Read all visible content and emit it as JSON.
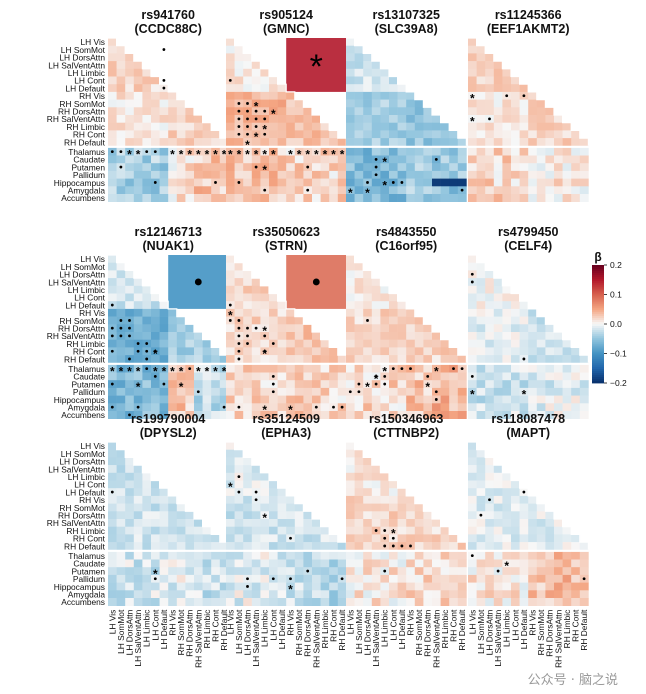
{
  "figure": {
    "watermark": "公众号 · 脑之说",
    "row_labels": [
      "LH Vis",
      "LH SomMot",
      "LH DorsAttn",
      "LH SalVentAttn",
      "LH Limbic",
      "LH Cont",
      "LH Default",
      "RH Vis",
      "RH SomMot",
      "RH DorsAttn",
      "RH SalVentAttn",
      "RH Limbic",
      "RH Cont",
      "RH Default",
      "Thalamus",
      "Caudate",
      "Putamen",
      "Pallidum",
      "Hippocampus",
      "Amygdala",
      "Accumbens"
    ],
    "col_labels": [
      "LH Vis",
      "LH SomMot",
      "LH DorsAttn",
      "LH SalVentAttn",
      "LH Limbic",
      "LH Cont",
      "LH Default",
      "RH Vis",
      "RH SomMot",
      "RH DorsAttn",
      "RH SalVentAttn",
      "RH Limbic",
      "RH Cont",
      "RH Default"
    ],
    "colorbar": {
      "title": "β",
      "ticks": [
        "0.2",
        "0.1",
        "0.0",
        "−0.1",
        "−0.2"
      ],
      "range": [
        -0.2,
        0.2
      ],
      "colors": [
        "#08306b",
        "#2166ac",
        "#4393c3",
        "#92c5de",
        "#f7f7f7",
        "#f4a582",
        "#d6604d",
        "#b2182b",
        "#67001f"
      ]
    }
  },
  "chart_data": [
    {
      "type": "heatmap",
      "snp": "rs941760",
      "gene": "(CCDC88C)",
      "bg": [
        0.02,
        0.01,
        0.02
      ],
      "strip": [
        -0.04,
        0.01,
        0.03
      ],
      "dots": [
        [
          1,
          6
        ],
        [
          18,
          5
        ],
        [
          18,
          12
        ],
        [
          16,
          1
        ],
        [
          5,
          6
        ],
        [
          6,
          6
        ]
      ],
      "stars": [
        [
          14,
          2
        ],
        [
          14,
          3
        ],
        [
          14,
          7
        ],
        [
          14,
          8
        ],
        [
          14,
          9
        ],
        [
          14,
          10
        ],
        [
          14,
          11
        ],
        [
          14,
          12
        ],
        [
          14,
          13
        ]
      ],
      "dots_thal": [
        [
          14,
          0
        ],
        [
          14,
          1
        ],
        [
          14,
          4
        ],
        [
          14,
          5
        ]
      ],
      "big": null
    },
    {
      "type": "heatmap",
      "snp": "rs905124",
      "gene": "(GMNC)",
      "bg": [
        0.01,
        0.04,
        0.03
      ],
      "strip": [
        0.03,
        0.02,
        0.02
      ],
      "dots": [
        [
          5,
          0
        ],
        [
          8,
          1
        ],
        [
          8,
          2
        ],
        [
          9,
          1
        ],
        [
          9,
          2
        ],
        [
          9,
          3
        ],
        [
          9,
          4
        ],
        [
          10,
          1
        ],
        [
          10,
          2
        ],
        [
          10,
          3
        ],
        [
          10,
          4
        ],
        [
          11,
          1
        ],
        [
          11,
          2
        ],
        [
          11,
          3
        ],
        [
          12,
          1
        ],
        [
          12,
          2
        ],
        [
          12,
          4
        ],
        [
          16,
          3
        ],
        [
          19,
          4
        ],
        [
          18,
          1
        ],
        [
          19,
          9
        ],
        [
          16,
          9
        ]
      ],
      "stars": [
        [
          8,
          3
        ],
        [
          9,
          5
        ],
        [
          11,
          4
        ],
        [
          12,
          3
        ],
        [
          13,
          2
        ],
        [
          14,
          0
        ],
        [
          14,
          1
        ],
        [
          14,
          2
        ],
        [
          14,
          3
        ],
        [
          14,
          4
        ],
        [
          14,
          5
        ],
        [
          14,
          7
        ],
        [
          14,
          8
        ],
        [
          14,
          9
        ],
        [
          14,
          10
        ],
        [
          14,
          11
        ],
        [
          14,
          12
        ],
        [
          14,
          13
        ],
        [
          16,
          4
        ]
      ],
      "dots_thal": [],
      "big": {
        "kind": "star",
        "value": 0.15
      }
    },
    {
      "type": "heatmap",
      "snp": "rs13107325",
      "gene": "(SLC39A8)",
      "bg": [
        -0.02,
        -0.04,
        -0.05
      ],
      "strip": [
        -0.06,
        -0.04,
        -0.05
      ],
      "dots": [
        [
          15,
          3
        ],
        [
          15,
          10
        ],
        [
          16,
          3
        ],
        [
          17,
          3
        ],
        [
          18,
          2
        ],
        [
          18,
          5
        ],
        [
          18,
          6
        ],
        [
          19,
          13
        ]
      ],
      "stars": [
        [
          15,
          4
        ],
        [
          18,
          4
        ],
        [
          19,
          0
        ],
        [
          19,
          2
        ]
      ],
      "dots_thal": [],
      "strong": [
        [
          18,
          10
        ],
        [
          18,
          11
        ],
        [
          18,
          12
        ],
        [
          18,
          13
        ]
      ],
      "big": null
    },
    {
      "type": "heatmap",
      "snp": "rs11245366",
      "gene": "(EEF1AKMT2)",
      "bg": [
        0.02,
        0.01,
        0.02
      ],
      "strip": [
        0.02,
        0.01,
        0.01
      ],
      "dots": [
        [
          7,
          4
        ],
        [
          7,
          6
        ],
        [
          10,
          2
        ]
      ],
      "stars": [
        [
          7,
          0
        ],
        [
          10,
          0
        ]
      ],
      "dots_thal": [],
      "big": null
    },
    {
      "type": "heatmap",
      "snp": "rs12146713",
      "gene": "(NUAK1)",
      "bg": [
        -0.02,
        -0.07,
        -0.04
      ],
      "strip": [
        -0.06,
        0.03,
        -0.03
      ],
      "dots": [
        [
          6,
          0
        ],
        [
          8,
          1
        ],
        [
          8,
          2
        ],
        [
          9,
          0
        ],
        [
          9,
          1
        ],
        [
          9,
          2
        ],
        [
          10,
          0
        ],
        [
          10,
          1
        ],
        [
          10,
          2
        ],
        [
          11,
          3
        ],
        [
          11,
          4
        ],
        [
          12,
          0
        ],
        [
          12,
          3
        ],
        [
          12,
          4
        ],
        [
          12,
          5
        ],
        [
          13,
          2
        ],
        [
          13,
          4
        ],
        [
          15,
          5
        ],
        [
          16,
          0
        ],
        [
          16,
          6
        ],
        [
          17,
          10
        ],
        [
          19,
          0
        ],
        [
          19,
          3
        ],
        [
          19,
          13
        ],
        [
          20,
          2
        ]
      ],
      "stars": [
        [
          12,
          5
        ],
        [
          14,
          0
        ],
        [
          14,
          1
        ],
        [
          14,
          2
        ],
        [
          14,
          3
        ],
        [
          14,
          5
        ],
        [
          14,
          6
        ],
        [
          14,
          7
        ],
        [
          14,
          8
        ],
        [
          14,
          10
        ],
        [
          14,
          11
        ],
        [
          14,
          12
        ],
        [
          14,
          13
        ],
        [
          16,
          3
        ],
        [
          16,
          8
        ]
      ],
      "dots_thal": [
        [
          14,
          4
        ],
        [
          14,
          9
        ]
      ],
      "big": {
        "kind": "dot",
        "value": -0.1
      }
    },
    {
      "type": "heatmap",
      "snp": "rs35050623",
      "gene": "(STRN)",
      "bg": [
        0.02,
        0.02,
        0.03
      ],
      "strip": [
        0.02,
        0.03,
        0.02
      ],
      "dots": [
        [
          6,
          0
        ],
        [
          8,
          0
        ],
        [
          8,
          1
        ],
        [
          9,
          1
        ],
        [
          9,
          2
        ],
        [
          9,
          3
        ],
        [
          10,
          1
        ],
        [
          10,
          2
        ],
        [
          10,
          4
        ],
        [
          11,
          1
        ],
        [
          11,
          2
        ],
        [
          11,
          5
        ],
        [
          12,
          1
        ],
        [
          12,
          4
        ],
        [
          13,
          1
        ],
        [
          15,
          5
        ],
        [
          16,
          5
        ],
        [
          17,
          5
        ],
        [
          19,
          1
        ],
        [
          19,
          10
        ],
        [
          19,
          12
        ],
        [
          19,
          13
        ]
      ],
      "stars": [
        [
          7,
          0
        ],
        [
          9,
          4
        ],
        [
          12,
          4
        ],
        [
          19,
          4
        ],
        [
          19,
          7
        ]
      ],
      "dots_thal": [],
      "big": {
        "kind": "dot",
        "value": 0.09
      }
    },
    {
      "type": "heatmap",
      "snp": "rs4843550",
      "gene": "(C16orf95)",
      "bg": [
        0.01,
        0.02,
        0.02
      ],
      "strip": [
        0.02,
        0.03,
        0.04
      ],
      "dots": [
        [
          8,
          2
        ],
        [
          14,
          5
        ],
        [
          14,
          6
        ],
        [
          14,
          7
        ],
        [
          14,
          12
        ],
        [
          14,
          13
        ],
        [
          15,
          3
        ],
        [
          15,
          4
        ],
        [
          15,
          9
        ],
        [
          16,
          1
        ],
        [
          16,
          3
        ],
        [
          16,
          4
        ],
        [
          17,
          0
        ],
        [
          17,
          1
        ],
        [
          17,
          10
        ],
        [
          18,
          10
        ]
      ],
      "stars": [
        [
          14,
          4
        ],
        [
          14,
          10
        ],
        [
          15,
          3
        ],
        [
          16,
          2
        ],
        [
          16,
          9
        ]
      ],
      "dots_thal": [],
      "big": null
    },
    {
      "type": "heatmap",
      "snp": "rs4799450",
      "gene": "(CELF4)",
      "bg": [
        0.0,
        -0.01,
        -0.02
      ],
      "strip": [
        -0.02,
        -0.01,
        -0.01
      ],
      "dots": [
        [
          2,
          0
        ],
        [
          3,
          0
        ],
        [
          13,
          6
        ],
        [
          15,
          0
        ]
      ],
      "stars": [
        [
          17,
          0
        ],
        [
          17,
          6
        ]
      ],
      "dots_thal": [],
      "big": null
    },
    {
      "type": "heatmap",
      "snp": "rs199790004",
      "gene": "(DPYSL2)",
      "bg": [
        -0.02,
        -0.02,
        -0.02
      ],
      "strip": [
        -0.02,
        -0.01,
        -0.02
      ],
      "dots": [
        [
          6,
          0
        ],
        [
          17,
          5
        ]
      ],
      "stars": [
        [
          16,
          5
        ]
      ],
      "dots_thal": [],
      "big": null
    },
    {
      "type": "heatmap",
      "snp": "rs35124509",
      "gene": "(EPHA3)",
      "bg": [
        -0.01,
        -0.02,
        -0.02
      ],
      "strip": [
        -0.01,
        -0.02,
        -0.03
      ],
      "dots": [
        [
          4,
          1
        ],
        [
          6,
          1
        ],
        [
          6,
          3
        ],
        [
          7,
          3
        ],
        [
          12,
          7
        ],
        [
          16,
          9
        ],
        [
          17,
          2
        ],
        [
          17,
          5
        ],
        [
          17,
          7
        ],
        [
          17,
          13
        ],
        [
          18,
          2
        ]
      ],
      "stars": [
        [
          5,
          0
        ],
        [
          9,
          4
        ],
        [
          18,
          7
        ]
      ],
      "dots_thal": [],
      "big": null
    },
    {
      "type": "heatmap",
      "snp": "rs150346963",
      "gene": "(CTTNBP2)",
      "bg": [
        0.01,
        0.02,
        0.02
      ],
      "strip": [
        0.01,
        0.02,
        0.02
      ],
      "dots": [
        [
          11,
          3
        ],
        [
          11,
          4
        ],
        [
          12,
          4
        ],
        [
          12,
          5
        ],
        [
          13,
          4
        ],
        [
          13,
          5
        ],
        [
          13,
          6
        ],
        [
          13,
          7
        ],
        [
          16,
          4
        ]
      ],
      "stars": [
        [
          11,
          5
        ]
      ],
      "dots_thal": [],
      "big": null
    },
    {
      "type": "heatmap",
      "snp": "rs118087478",
      "gene": "(MAPT)",
      "bg": [
        -0.01,
        -0.01,
        -0.01
      ],
      "strip": [
        0.01,
        0.03,
        0.04
      ],
      "dots": [
        [
          6,
          6
        ],
        [
          7,
          2
        ],
        [
          9,
          1
        ],
        [
          14,
          0
        ],
        [
          16,
          3
        ],
        [
          17,
          13
        ]
      ],
      "stars": [
        [
          15,
          4
        ]
      ],
      "dots_thal": [],
      "big": null
    }
  ]
}
